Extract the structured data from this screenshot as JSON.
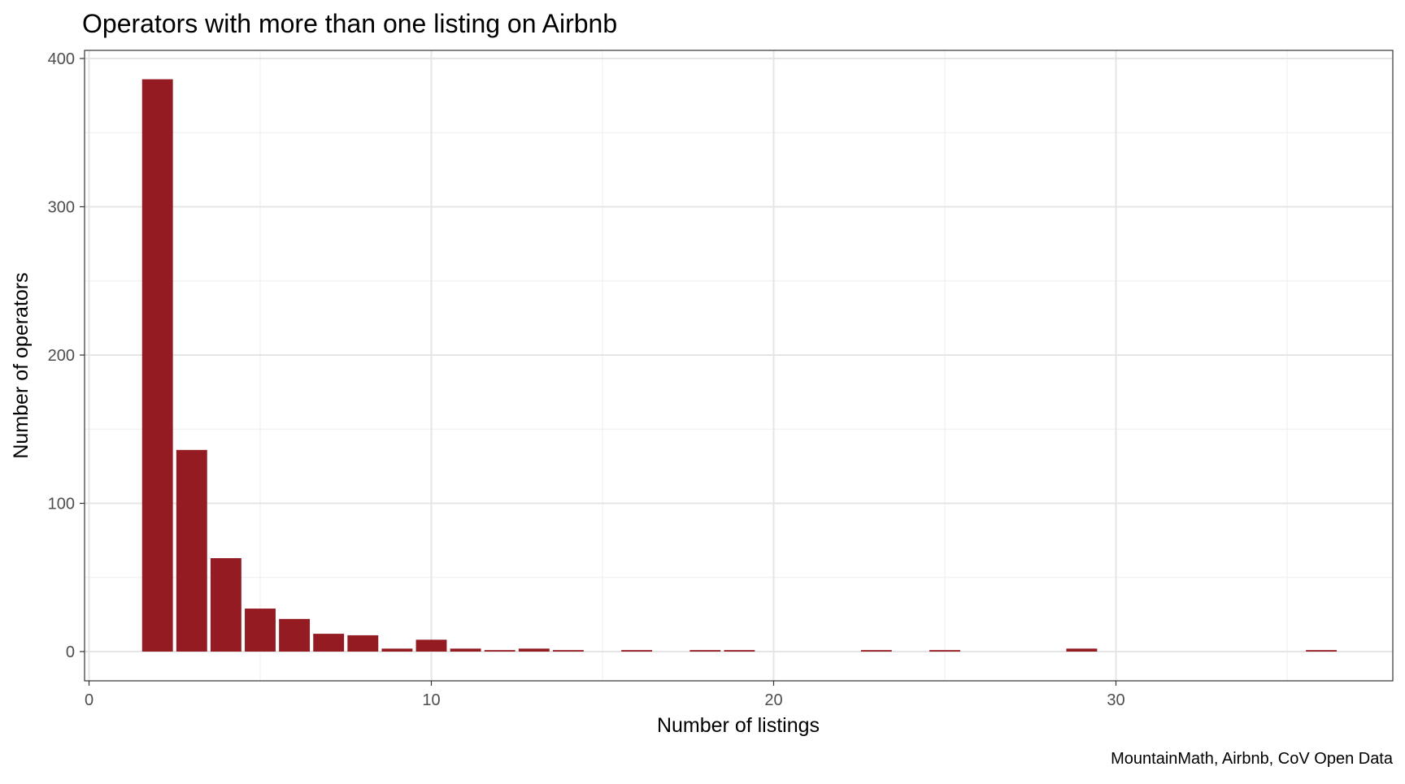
{
  "chart_data": {
    "type": "bar",
    "title": "Operators with more than one listing on Airbnb",
    "xlabel": "Number of listings",
    "ylabel": "Number of operators",
    "caption": "MountainMath, Airbnb, CoV Open Data",
    "xlim": [
      0,
      38
    ],
    "ylim": [
      0,
      400
    ],
    "x_ticks": [
      0,
      10,
      20,
      30
    ],
    "y_ticks": [
      0,
      100,
      200,
      300,
      400
    ],
    "grid": true,
    "bar_color": "#941B22",
    "x": [
      2,
      3,
      4,
      5,
      6,
      7,
      8,
      9,
      10,
      11,
      12,
      13,
      14,
      16,
      18,
      19,
      23,
      25,
      29,
      36
    ],
    "values": [
      386,
      136,
      63,
      29,
      22,
      12,
      11,
      2,
      8,
      2,
      1,
      2,
      1,
      1,
      1,
      1,
      1,
      1,
      2,
      1
    ]
  },
  "colors": {
    "grid_major": "#e5e5e5",
    "grid_minor": "#f0f0f0",
    "panel_border": "#333333",
    "tick_text": "#4d4d4d",
    "title_text": "#000000"
  }
}
